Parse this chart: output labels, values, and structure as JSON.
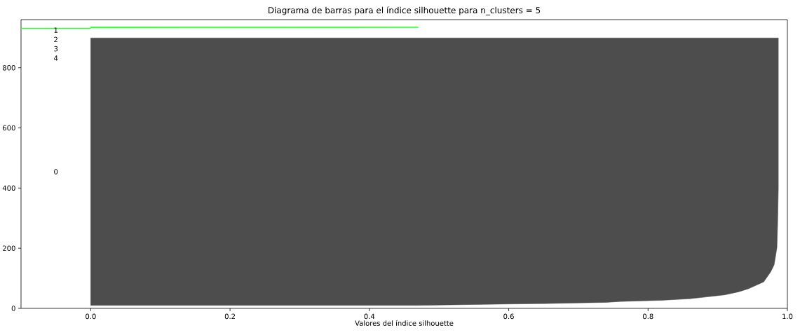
{
  "chart_data": {
    "type": "area",
    "orientation": "horizontal",
    "title": "Diagrama de barras para el índice silhouette para n_clusters = 5",
    "xlabel": "Valores del índice silhouette",
    "xlim": [
      -0.1,
      1.0
    ],
    "xticks": [
      {
        "value": 0,
        "label": "0.0"
      },
      0.2,
      0.4,
      0.6,
      0.8,
      {
        "value": 1,
        "label": "1.0"
      }
    ],
    "ylim": [
      0,
      960
    ],
    "yticks": [
      0,
      200,
      400,
      600,
      800
    ],
    "series": [
      {
        "color": "#4d4d4d",
        "x": [
          10,
          13,
          16,
          20,
          23,
          27,
          32,
          37,
          45,
          55,
          65,
          88,
          121,
          145,
          202,
          282,
          400,
          600,
          899
        ],
        "values": [
          0.47,
          0.55,
          0.65,
          0.74,
          0.76,
          0.82,
          0.86,
          0.88,
          0.91,
          0.93,
          0.944,
          0.966,
          0.976,
          0.981,
          0.985,
          0.986,
          0.987,
          0.987,
          0.987
        ]
      },
      {
        "color": "#33ff33",
        "x": [
          930,
          932,
          933,
          936
        ],
        "values": [
          -0.1,
          -0.1,
          0.47,
          0.47
        ]
      }
    ],
    "annotations": [
      "0",
      "1",
      "2",
      "3",
      "4"
    ]
  }
}
